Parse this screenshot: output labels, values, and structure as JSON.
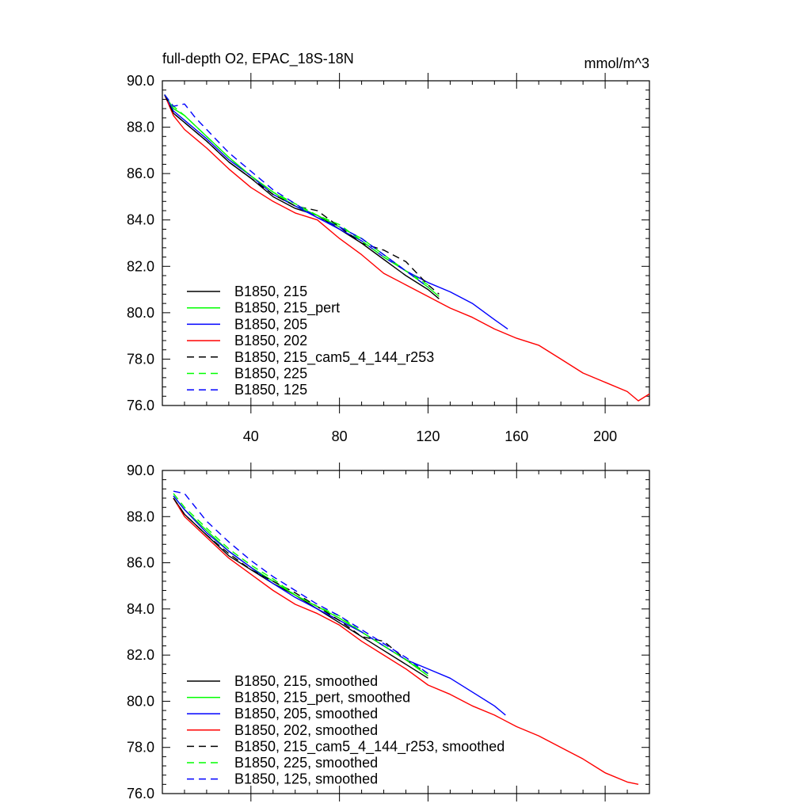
{
  "figure": {
    "title": "full-depth O2, EPAC_18S-18N",
    "units": "mmol/m^3"
  },
  "chart_data": [
    {
      "type": "line",
      "panel": "top",
      "title": "full-depth O2, EPAC_18S-18N",
      "units": "mmol/m^3",
      "xlim": [
        0,
        220
      ],
      "ylim": [
        76.0,
        90.0
      ],
      "x_ticks": [
        40,
        80,
        120,
        160,
        200
      ],
      "x_tick_labels": [
        "40",
        "80",
        "120",
        "160",
        "200"
      ],
      "y_ticks": [
        76.0,
        78.0,
        80.0,
        82.0,
        84.0,
        86.0,
        88.0,
        90.0
      ],
      "y_tick_labels": [
        "76.0",
        "78.0",
        "80.0",
        "82.0",
        "84.0",
        "86.0",
        "88.0",
        "90.0"
      ],
      "legend_position": "bottom-left",
      "series": [
        {
          "name": "B1850, 215",
          "color": "#000000",
          "dash": "solid",
          "x": [
            1,
            5,
            10,
            20,
            30,
            40,
            50,
            60,
            70,
            80,
            90,
            100,
            110,
            120,
            125
          ],
          "y": [
            89.4,
            88.6,
            88.2,
            87.4,
            86.5,
            85.8,
            85.0,
            84.5,
            84.2,
            83.6,
            83.0,
            82.3,
            81.6,
            81.0,
            80.6
          ]
        },
        {
          "name": "B1850, 215_pert",
          "color": "#00ff00",
          "dash": "solid",
          "x": [
            1,
            5,
            10,
            20,
            30,
            40,
            50,
            60,
            70,
            80,
            90,
            100,
            110,
            120,
            125
          ],
          "y": [
            89.4,
            88.8,
            88.5,
            87.6,
            86.7,
            85.9,
            85.2,
            84.6,
            84.2,
            83.7,
            83.2,
            82.5,
            81.8,
            81.1,
            80.7
          ]
        },
        {
          "name": "B1850, 205",
          "color": "#0000ff",
          "dash": "solid",
          "x": [
            1,
            5,
            10,
            20,
            30,
            40,
            50,
            60,
            70,
            80,
            90,
            100,
            110,
            120,
            130,
            140,
            150,
            156
          ],
          "y": [
            89.4,
            88.7,
            88.3,
            87.5,
            86.6,
            85.9,
            85.1,
            84.6,
            84.1,
            83.6,
            83.1,
            82.4,
            81.8,
            81.3,
            80.9,
            80.4,
            79.7,
            79.3
          ]
        },
        {
          "name": "B1850, 202",
          "color": "#ff0000",
          "dash": "solid",
          "x": [
            1,
            5,
            10,
            20,
            30,
            40,
            50,
            60,
            70,
            80,
            90,
            100,
            110,
            120,
            130,
            140,
            150,
            160,
            170,
            180,
            190,
            200,
            210,
            215,
            220
          ],
          "y": [
            89.4,
            88.5,
            87.9,
            87.1,
            86.2,
            85.4,
            84.8,
            84.3,
            84.0,
            83.2,
            82.5,
            81.7,
            81.2,
            80.7,
            80.2,
            79.8,
            79.3,
            78.9,
            78.6,
            78.0,
            77.4,
            77.0,
            76.6,
            76.2,
            76.5
          ]
        },
        {
          "name": "B1850, 215_cam5_4_144_r253",
          "color": "#000000",
          "dash": "dashed",
          "x": [
            1,
            5,
            10,
            20,
            30,
            40,
            50,
            60,
            70,
            80,
            90,
            100,
            110,
            120,
            125
          ],
          "y": [
            89.4,
            88.6,
            88.2,
            87.4,
            86.5,
            85.8,
            85.1,
            84.6,
            84.4,
            83.7,
            83.0,
            82.7,
            82.2,
            81.2,
            80.8
          ]
        },
        {
          "name": "B1850, 225",
          "color": "#00ff00",
          "dash": "dashed",
          "x": [
            1,
            5,
            10,
            20,
            30,
            40,
            50,
            60,
            70,
            80,
            90,
            100,
            110,
            120
          ],
          "y": [
            89.4,
            88.9,
            88.5,
            87.6,
            86.7,
            85.9,
            85.2,
            84.7,
            84.2,
            83.8,
            83.1,
            82.4,
            81.8,
            81.2
          ]
        },
        {
          "name": "B1850, 125",
          "color": "#0000ff",
          "dash": "dashed",
          "x": [
            1,
            5,
            10,
            15,
            20,
            30,
            40,
            50,
            60,
            70,
            80,
            90,
            100,
            110,
            120
          ],
          "y": [
            89.4,
            88.9,
            89.0,
            88.4,
            87.9,
            86.9,
            86.1,
            85.3,
            84.7,
            84.1,
            83.7,
            83.2,
            82.5,
            81.8,
            81.1
          ]
        }
      ]
    },
    {
      "type": "line",
      "panel": "bottom",
      "xlim": [
        0,
        220
      ],
      "ylim": [
        76.0,
        90.0
      ],
      "x_ticks": [
        40,
        80,
        120,
        160,
        200
      ],
      "y_ticks": [
        76.0,
        78.0,
        80.0,
        82.0,
        84.0,
        86.0,
        88.0,
        90.0
      ],
      "y_tick_labels": [
        "76.0",
        "78.0",
        "80.0",
        "82.0",
        "84.0",
        "86.0",
        "88.0",
        "90.0"
      ],
      "legend_position": "bottom-left",
      "series": [
        {
          "name": "B1850, 215, smoothed",
          "color": "#000000",
          "dash": "solid",
          "x": [
            5,
            10,
            20,
            30,
            40,
            50,
            60,
            70,
            80,
            90,
            100,
            110,
            120
          ],
          "y": [
            88.8,
            88.1,
            87.2,
            86.3,
            85.7,
            85.1,
            84.6,
            84.0,
            83.4,
            82.8,
            82.2,
            81.6,
            81.0
          ]
        },
        {
          "name": "B1850, 215_pert, smoothed",
          "color": "#00ff00",
          "dash": "solid",
          "x": [
            5,
            10,
            20,
            30,
            40,
            50,
            60,
            70,
            80,
            90,
            100,
            110,
            120
          ],
          "y": [
            88.9,
            88.3,
            87.4,
            86.5,
            85.8,
            85.2,
            84.6,
            84.1,
            83.6,
            83.0,
            82.4,
            81.8,
            81.1
          ]
        },
        {
          "name": "B1850, 205, smoothed",
          "color": "#0000ff",
          "dash": "solid",
          "x": [
            5,
            10,
            20,
            30,
            40,
            50,
            60,
            70,
            80,
            90,
            100,
            110,
            120,
            130,
            140,
            150,
            155
          ],
          "y": [
            88.9,
            88.3,
            87.3,
            86.5,
            85.8,
            85.1,
            84.5,
            84.0,
            83.5,
            83.0,
            82.4,
            81.8,
            81.4,
            81.0,
            80.4,
            79.8,
            79.4
          ]
        },
        {
          "name": "B1850, 202, smoothed",
          "color": "#ff0000",
          "dash": "solid",
          "x": [
            5,
            10,
            20,
            30,
            40,
            50,
            60,
            70,
            80,
            90,
            100,
            110,
            120,
            130,
            140,
            150,
            160,
            170,
            180,
            190,
            200,
            210,
            215
          ],
          "y": [
            88.8,
            88.0,
            87.1,
            86.2,
            85.5,
            84.8,
            84.2,
            83.8,
            83.3,
            82.6,
            82.0,
            81.4,
            80.7,
            80.3,
            79.8,
            79.4,
            78.9,
            78.5,
            78.0,
            77.5,
            76.9,
            76.5,
            76.4
          ]
        },
        {
          "name": "B1850, 215_cam5_4_144_r253, smoothed",
          "color": "#000000",
          "dash": "dashed",
          "x": [
            5,
            10,
            20,
            30,
            40,
            50,
            60,
            70,
            80,
            90,
            100,
            110,
            120
          ],
          "y": [
            88.8,
            88.1,
            87.2,
            86.4,
            85.7,
            85.2,
            84.7,
            84.1,
            83.5,
            82.8,
            82.6,
            81.8,
            81.2
          ]
        },
        {
          "name": "B1850, 225, smoothed",
          "color": "#00ff00",
          "dash": "dashed",
          "x": [
            5,
            10,
            20,
            30,
            40,
            50,
            60,
            70,
            80,
            90,
            100,
            110,
            120
          ],
          "y": [
            89.0,
            88.4,
            87.5,
            86.6,
            85.9,
            85.3,
            84.6,
            84.1,
            83.7,
            83.0,
            82.4,
            81.8,
            81.2
          ]
        },
        {
          "name": "B1850, 125, smoothed",
          "color": "#0000ff",
          "dash": "dashed",
          "x": [
            5,
            10,
            15,
            20,
            30,
            40,
            50,
            60,
            70,
            80,
            90,
            100,
            110,
            120
          ],
          "y": [
            89.1,
            89.0,
            88.4,
            87.8,
            86.9,
            86.1,
            85.4,
            84.8,
            84.2,
            83.7,
            83.1,
            82.5,
            81.9,
            81.2
          ]
        }
      ]
    }
  ]
}
